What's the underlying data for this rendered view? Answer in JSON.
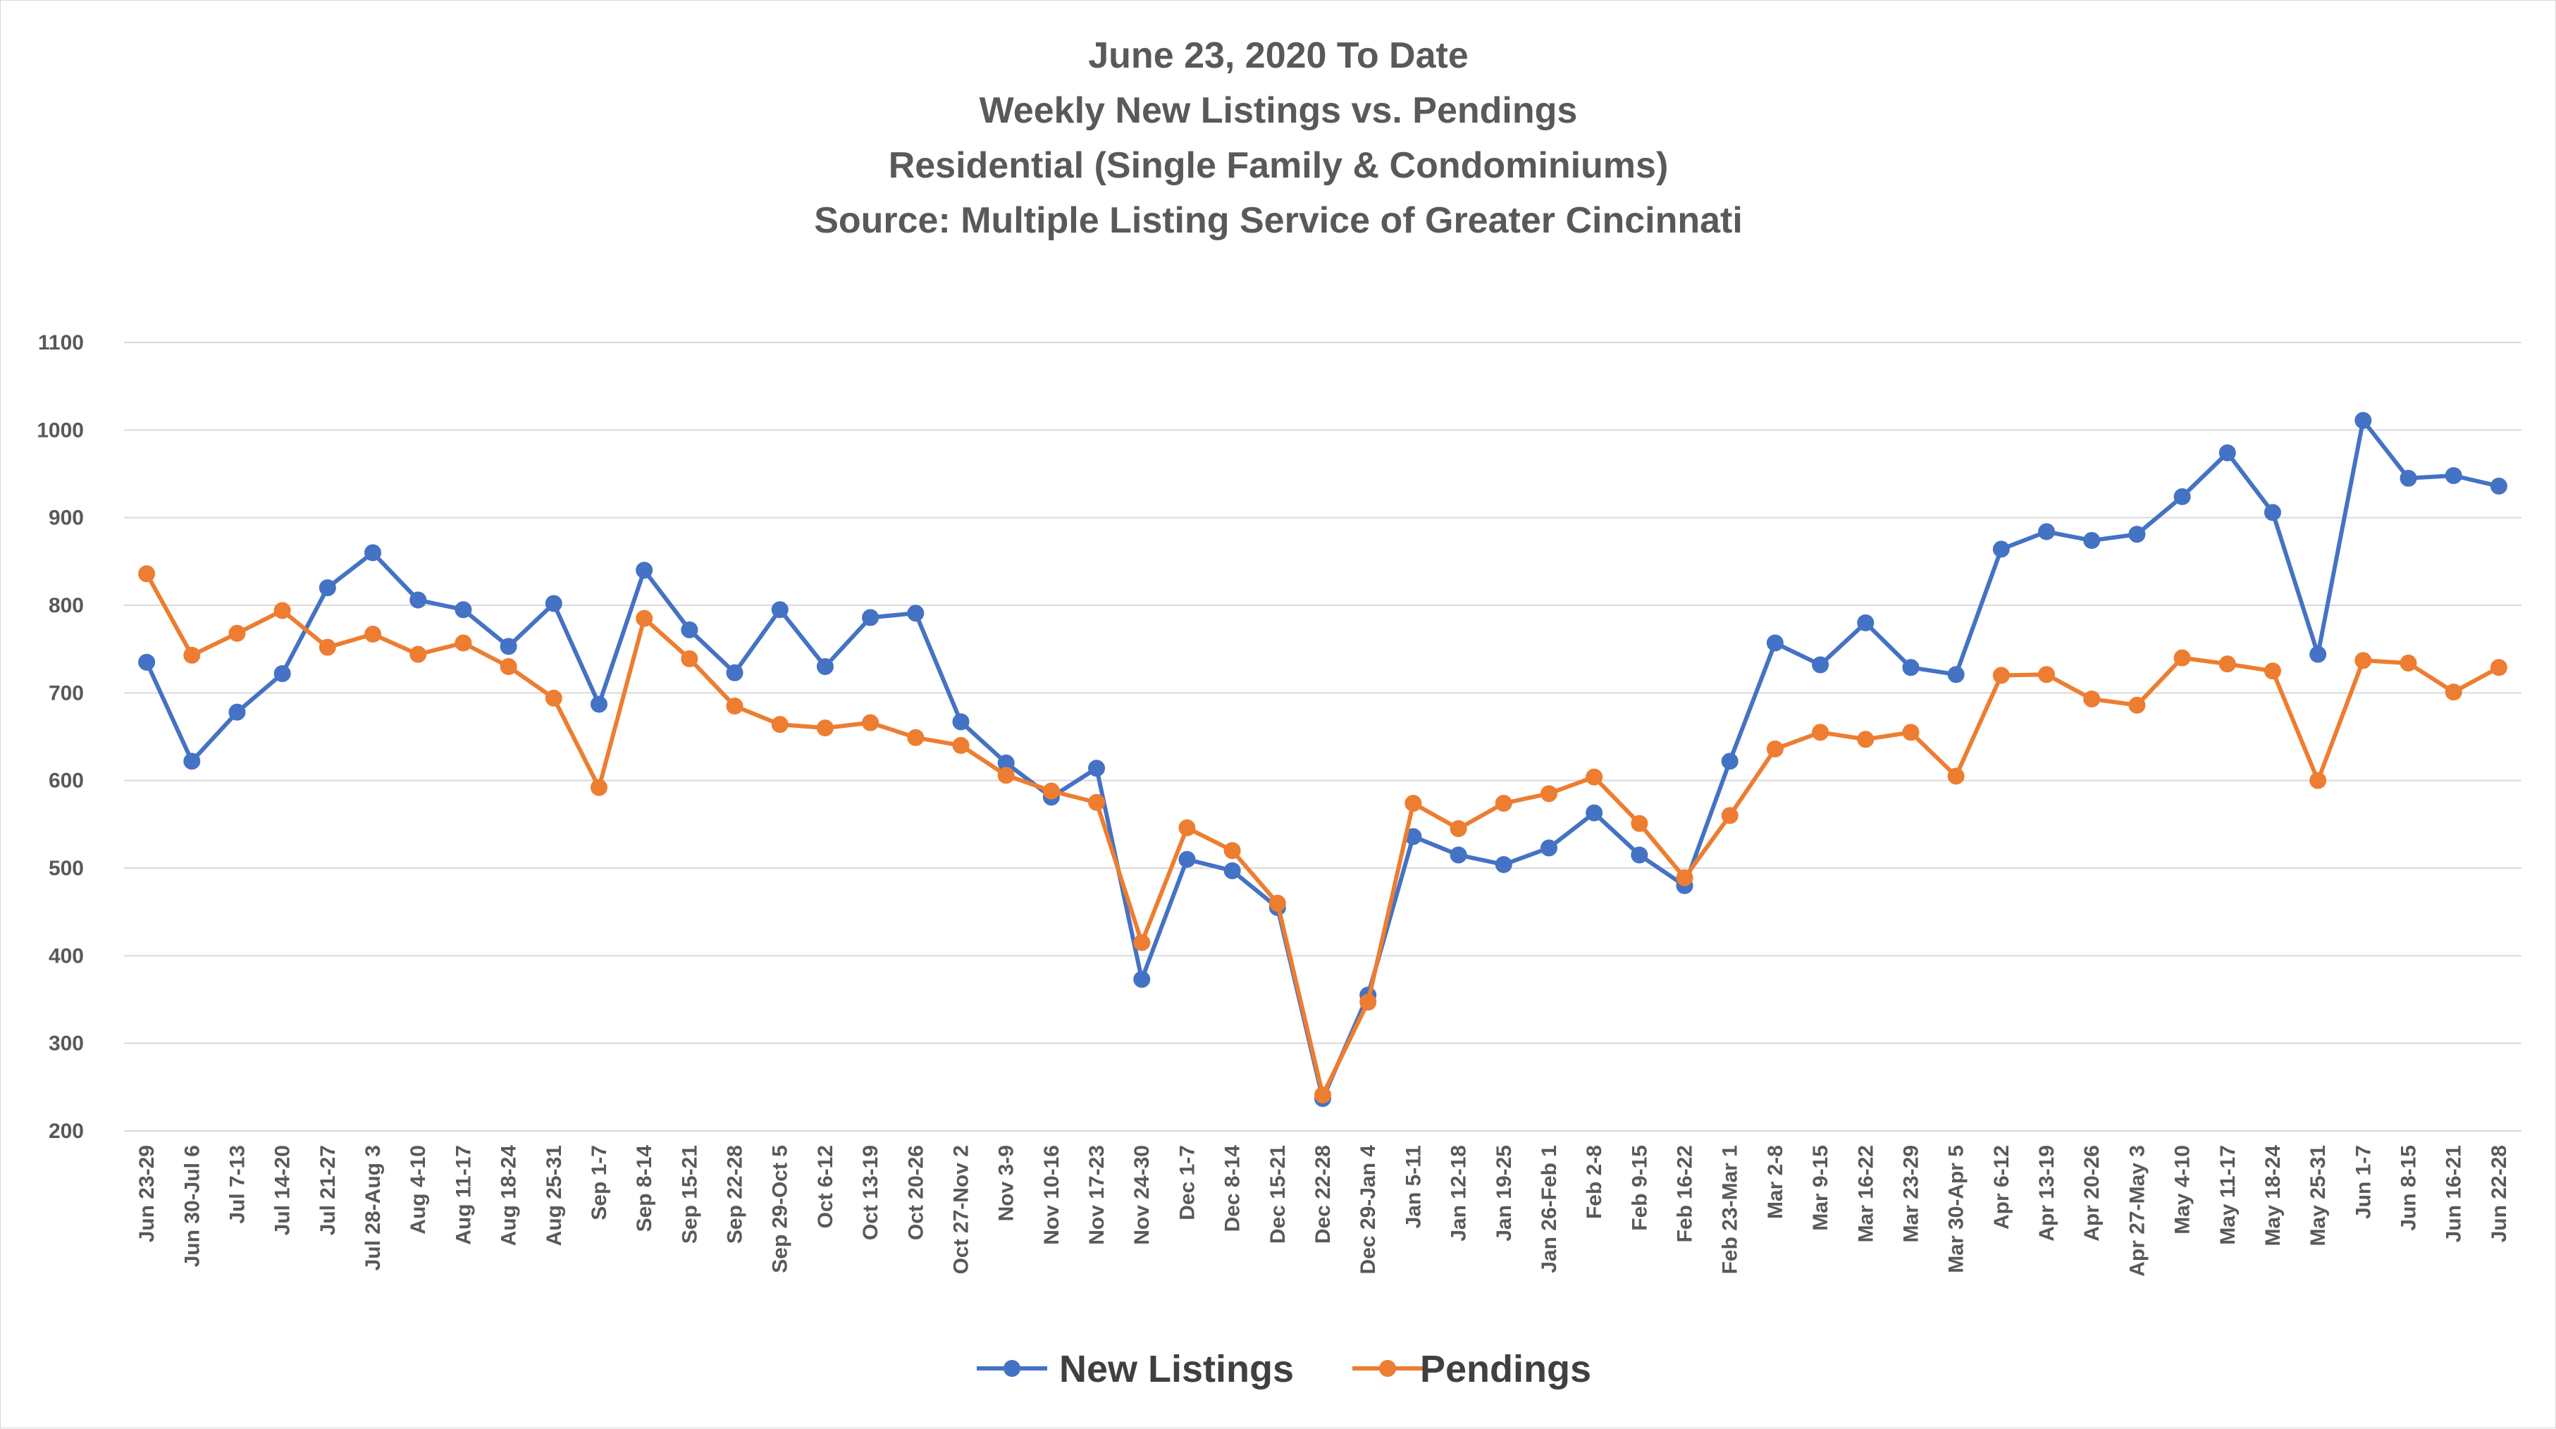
{
  "chart_data": {
    "type": "line",
    "title_lines": [
      "June 23, 2020 To Date",
      "Weekly New Listings vs. Pendings",
      "Residential (Single Family & Condominiums)",
      "Source: Multiple Listing Service of Greater Cincinnati"
    ],
    "xlabel": "",
    "ylabel": "",
    "ylim": [
      200,
      1100
    ],
    "yticks": [
      200,
      300,
      400,
      500,
      600,
      700,
      800,
      900,
      1000,
      1100
    ],
    "grid": "horizontal",
    "legend_position": "bottom",
    "categories": [
      "Jun 23-29",
      "Jun 30-Jul 6",
      "Jul 7-13",
      "Jul 14-20",
      "Jul 21-27",
      "Jul 28-Aug 3",
      "Aug 4-10",
      "Aug 11-17",
      "Aug 18-24",
      "Aug 25-31",
      "Sep 1-7",
      "Sep 8-14",
      "Sep 15-21",
      "Sep 22-28",
      "Sep 29-Oct 5",
      "Oct 6-12",
      "Oct 13-19",
      "Oct 20-26",
      "Oct 27-Nov 2",
      "Nov 3-9",
      "Nov 10-16",
      "Nov 17-23",
      "Nov 24-30",
      "Dec 1-7",
      "Dec 8-14",
      "Dec 15-21",
      "Dec 22-28",
      "Dec 29-Jan 4",
      "Jan 5-11",
      "Jan 12-18",
      "Jan 19-25",
      "Jan 26-Feb 1",
      "Feb 2-8",
      "Feb 9-15",
      "Feb 16-22",
      "Feb 23-Mar 1",
      "Mar 2-8",
      "Mar 9-15",
      "Mar 16-22",
      "Mar 23-29",
      "Mar 30-Apr 5",
      "Apr 6-12",
      "Apr 13-19",
      "Apr 20-26",
      "Apr 27-May 3",
      "May 4-10",
      "May 11-17",
      "May 18-24",
      "May 25-31",
      "Jun 1-7",
      "Jun 8-15",
      "Jun 16-21",
      "Jun 22-28"
    ],
    "series": [
      {
        "name": "New Listings",
        "color": "#4472C4",
        "values": [
          735,
          622,
          678,
          722,
          820,
          860,
          806,
          795,
          753,
          802,
          687,
          840,
          772,
          723,
          795,
          730,
          786,
          791,
          667,
          620,
          581,
          614,
          373,
          510,
          497,
          455,
          237,
          355,
          536,
          515,
          504,
          523,
          563,
          515,
          480,
          622,
          757,
          732,
          780,
          729,
          721,
          864,
          884,
          874,
          881,
          924,
          974,
          906,
          744,
          1011,
          945,
          948,
          936
        ]
      },
      {
        "name": "Pendings",
        "color": "#ED7D31",
        "values": [
          836,
          743,
          768,
          794,
          752,
          767,
          744,
          757,
          730,
          694,
          592,
          785,
          739,
          685,
          664,
          660,
          666,
          649,
          640,
          606,
          588,
          575,
          415,
          546,
          520,
          460,
          241,
          347,
          574,
          545,
          574,
          585,
          604,
          551,
          489,
          560,
          636,
          655,
          647,
          655,
          605,
          720,
          721,
          693,
          686,
          740,
          733,
          725,
          600,
          737,
          734,
          701,
          729
        ]
      }
    ]
  }
}
